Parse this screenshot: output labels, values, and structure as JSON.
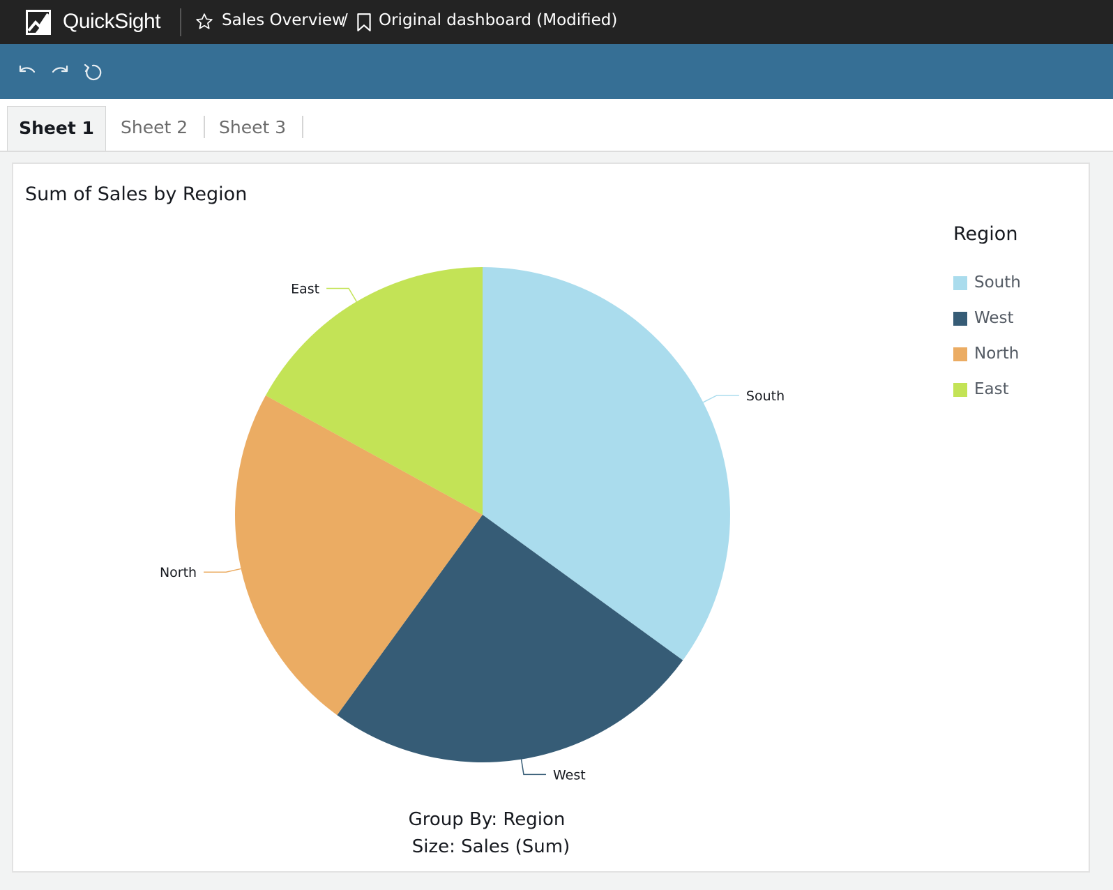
{
  "header": {
    "brand": "QuickSight",
    "analysis_name": "Sales Overview",
    "separator": "/",
    "sheet_name": "Original dashboard (Modified)"
  },
  "toolbar": {
    "undo_icon": "undo-icon",
    "redo_icon": "redo-icon",
    "reset_icon": "reset-icon"
  },
  "tabs": [
    {
      "label": "Sheet 1",
      "active": true
    },
    {
      "label": "Sheet 2",
      "active": false
    },
    {
      "label": "Sheet 3",
      "active": false
    }
  ],
  "visual": {
    "title": "Sum of Sales by Region",
    "group_by": "Group By: Region",
    "size": "Size: Sales (Sum)"
  },
  "chart_data": {
    "type": "pie",
    "title": "Sum of Sales by Region",
    "legend_title": "Region",
    "legend_position": "right",
    "categories": [
      "South",
      "West",
      "North",
      "East"
    ],
    "values": [
      35,
      25,
      23,
      17
    ],
    "colors": [
      "#aadced",
      "#365c76",
      "#ebac63",
      "#c3e356"
    ]
  }
}
